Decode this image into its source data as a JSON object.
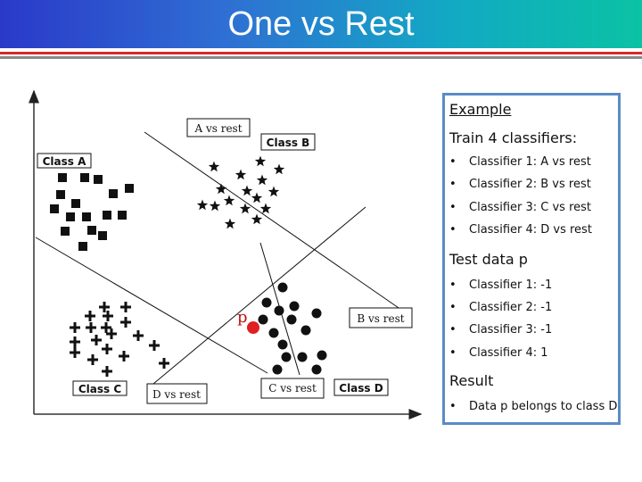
{
  "slide": {
    "title": "One vs Rest"
  },
  "diagram": {
    "classes": {
      "a": "Class A",
      "b": "Class B",
      "c": "Class C",
      "d": "Class D"
    },
    "boundaries": {
      "a": "A vs rest",
      "b": "B vs rest",
      "c": "C vs rest",
      "d": "D vs rest"
    },
    "test_point": {
      "label": "p",
      "color": "#e02020"
    }
  },
  "panel": {
    "example_heading": "Example",
    "train_heading": "Train 4 classifiers:",
    "classifiers": [
      "Classifier 1: A vs rest",
      "Classifier 2: B vs rest",
      "Classifier 3: C vs rest",
      "Classifier 4: D vs rest"
    ],
    "test_heading": "Test data  p",
    "test_results": [
      "Classifier 1: -1",
      "Classifier 2: -1",
      "Classifier 3: -1",
      "Classifier 4: 1"
    ],
    "result_heading": "Result",
    "result_items": [
      "Data p belongs to class D"
    ],
    "bullet": "•"
  },
  "colors": {
    "border": "#5b8bc6",
    "rule_red": "#d52a2a",
    "rule_gray": "#8a8a8a"
  }
}
